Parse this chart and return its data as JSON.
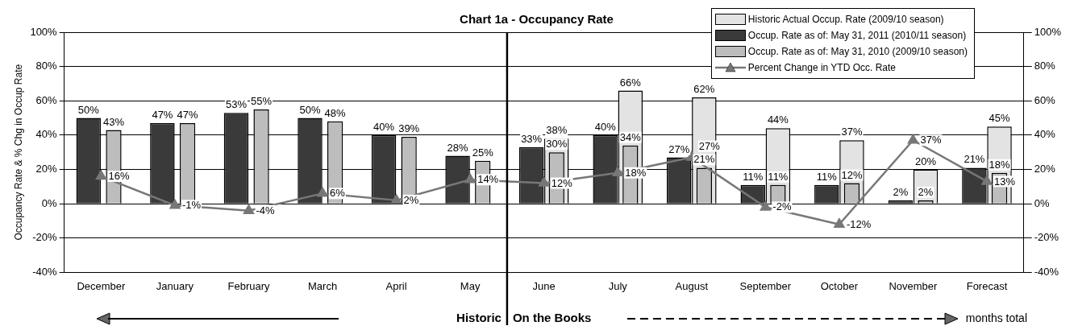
{
  "chart_data": {
    "type": "bar",
    "title": "Chart 1a - Occupancy Rate",
    "ylabel": "Occupancy Rate & % Chg in Occup Rate",
    "categories": [
      "December",
      "January",
      "February",
      "March",
      "April",
      "May",
      "June",
      "July",
      "August",
      "September",
      "October",
      "November",
      "Forecast"
    ],
    "series": [
      {
        "name": "Historic Actual Occup. Rate (2009/10 season)",
        "color": "#e3e3e3",
        "values": [
          null,
          null,
          null,
          null,
          null,
          null,
          38,
          66,
          62,
          44,
          37,
          20,
          45
        ],
        "value_labels": [
          null,
          null,
          null,
          null,
          null,
          null,
          "38%",
          "66%",
          "62%",
          "44%",
          "37%",
          "20%",
          "45%"
        ]
      },
      {
        "name": "Occup. Rate as of: May 31, 2011 (2010/11 season)",
        "color": "#3a3a3a",
        "values": [
          50,
          47,
          53,
          50,
          40,
          28,
          33,
          40,
          27,
          11,
          11,
          2,
          21
        ],
        "value_labels": [
          "50%",
          "47%",
          "53%",
          "50%",
          "40%",
          "28%",
          "33%",
          "40%",
          "27%",
          "11%",
          "11%",
          "2%",
          "21%"
        ]
      },
      {
        "name": "Occup. Rate as of: May 31, 2010 (2009/10 season)",
        "color": "#bdbdbd",
        "values": [
          43,
          47,
          55,
          48,
          39,
          25,
          30,
          34,
          21,
          11,
          12,
          2,
          18
        ],
        "value_labels": [
          "43%",
          "47%",
          "55%",
          "48%",
          "39%",
          "25%",
          "30%",
          "34%",
          "21%",
          "11%",
          "12%",
          "2%",
          "18%"
        ]
      },
      {
        "name": "Percent Change in YTD Occ. Rate",
        "type": "line",
        "color": "#777777",
        "values": [
          16,
          -1,
          -4,
          6,
          2,
          14,
          12,
          18,
          27,
          -2,
          -12,
          37,
          13
        ],
        "value_labels": [
          "16%",
          "-1%",
          "-4%",
          "6%",
          "2%",
          "14%",
          "12%",
          "18%",
          "27%",
          "-2%",
          "-12%",
          "37%",
          "13%"
        ]
      }
    ],
    "ylim": [
      -40,
      100
    ],
    "yticks": [
      {
        "value": -40,
        "label": "-40%"
      },
      {
        "value": -20,
        "label": "-20%"
      },
      {
        "value": 0,
        "label": "0%"
      },
      {
        "value": 20,
        "label": "20%"
      },
      {
        "value": 40,
        "label": "40%"
      },
      {
        "value": 60,
        "label": "60%"
      },
      {
        "value": 80,
        "label": "80%"
      },
      {
        "value": 100,
        "label": "100%"
      }
    ],
    "y2lim": [
      -40,
      100
    ],
    "y2ticks": [
      {
        "value": -40,
        "label": "-40%"
      },
      {
        "value": -20,
        "label": "-20%"
      },
      {
        "value": 0,
        "label": "0%"
      },
      {
        "value": 20,
        "label": "20%"
      },
      {
        "value": 40,
        "label": "40%"
      },
      {
        "value": 60,
        "label": "60%"
      },
      {
        "value": 80,
        "label": "80%"
      },
      {
        "value": 100,
        "label": "100%"
      }
    ],
    "ref_lines": [
      {
        "axis": "x",
        "value": "June",
        "color": "#000000"
      }
    ],
    "annotations": [
      "Historic",
      "On the Books",
      "months total"
    ],
    "grid": "y",
    "legend": "top right",
    "marker": "triangle"
  }
}
